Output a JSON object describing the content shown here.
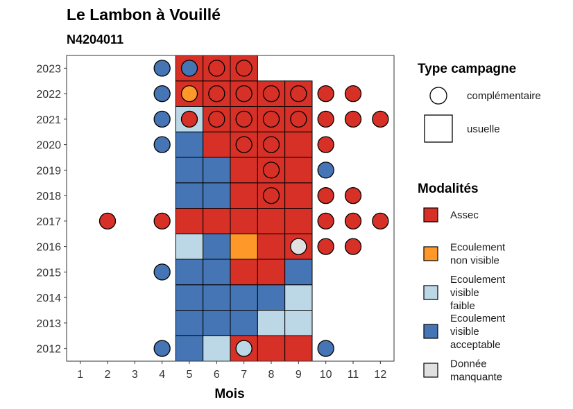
{
  "chart_data": {
    "type": "heatmap",
    "title": "Le Lambon à Vouillé",
    "subtitle": "N4204011",
    "xlabel": "Mois",
    "ylabel": "",
    "x_ticks": [
      "1",
      "2",
      "3",
      "4",
      "5",
      "6",
      "7",
      "8",
      "9",
      "10",
      "11",
      "12"
    ],
    "y_ticks": [
      "2012",
      "2013",
      "2014",
      "2015",
      "2016",
      "2017",
      "2018",
      "2019",
      "2020",
      "2021",
      "2022",
      "2023"
    ],
    "grid": false,
    "colors": {
      "assec": "#d73027",
      "ecoulement_non_visible": "#fe9929",
      "ecoulement_visible_faible": "#bcd7e6",
      "ecoulement_visible_acceptable": "#4575b4",
      "donnee_manquante": "#e0e0e0"
    },
    "legend_shape": {
      "title": "Type campagne",
      "items": [
        {
          "label": "complémentaire",
          "shape": "circle"
        },
        {
          "label": "usuelle",
          "shape": "square"
        }
      ]
    },
    "legend_fill": {
      "title": "Modalités",
      "items": [
        {
          "key": "assec",
          "lines": [
            "Assec"
          ]
        },
        {
          "key": "ecoulement_non_visible",
          "lines": [
            "Ecoulement",
            "non visible"
          ]
        },
        {
          "key": "ecoulement_visible_faible",
          "lines": [
            "Ecoulement",
            "visible",
            "faible"
          ]
        },
        {
          "key": "ecoulement_visible_acceptable",
          "lines": [
            "Ecoulement",
            "visible",
            "acceptable"
          ]
        },
        {
          "key": "donnee_manquante",
          "lines": [
            "Donnée",
            "manquante"
          ]
        }
      ]
    },
    "usuelle": [
      {
        "year": 2012,
        "months": [
          [
            "ecoulement_visible_acceptable"
          ],
          [
            "ecoulement_visible_faible"
          ],
          [
            "assec"
          ],
          [
            "assec"
          ],
          [
            "assec"
          ]
        ]
      },
      {
        "year": 2013,
        "months": [
          [
            "ecoulement_visible_acceptable"
          ],
          [
            "ecoulement_visible_acceptable"
          ],
          [
            "ecoulement_visible_acceptable"
          ],
          [
            "ecoulement_visible_faible"
          ],
          [
            "ecoulement_visible_faible"
          ]
        ]
      },
      {
        "year": 2014,
        "months": [
          [
            "ecoulement_visible_acceptable"
          ],
          [
            "ecoulement_visible_acceptable"
          ],
          [
            "ecoulement_visible_acceptable"
          ],
          [
            "ecoulement_visible_acceptable"
          ],
          [
            "ecoulement_visible_faible"
          ]
        ]
      },
      {
        "year": 2015,
        "months": [
          [
            "ecoulement_visible_acceptable"
          ],
          [
            "ecoulement_visible_acceptable"
          ],
          [
            "assec"
          ],
          [
            "assec"
          ],
          [
            "ecoulement_visible_acceptable"
          ]
        ]
      },
      {
        "year": 2016,
        "months": [
          [
            "ecoulement_visible_faible"
          ],
          [
            "ecoulement_visible_acceptable"
          ],
          [
            "ecoulement_non_visible"
          ],
          [
            "assec"
          ],
          [
            "assec"
          ]
        ]
      },
      {
        "year": 2017,
        "months": [
          [
            "assec"
          ],
          [
            "assec"
          ],
          [
            "assec"
          ],
          [
            "assec"
          ],
          [
            "assec"
          ]
        ]
      },
      {
        "year": 2018,
        "months": [
          [
            "ecoulement_visible_acceptable"
          ],
          [
            "ecoulement_visible_acceptable"
          ],
          [
            "assec"
          ],
          [
            "assec"
          ],
          [
            "assec"
          ]
        ]
      },
      {
        "year": 2019,
        "months": [
          [
            "ecoulement_visible_acceptable"
          ],
          [
            "ecoulement_visible_acceptable"
          ],
          [
            "assec"
          ],
          [
            "assec"
          ],
          [
            "assec"
          ]
        ]
      },
      {
        "year": 2020,
        "months": [
          [
            "ecoulement_visible_acceptable"
          ],
          [
            "assec"
          ],
          [
            "assec"
          ],
          [
            "assec"
          ],
          [
            "assec"
          ]
        ]
      },
      {
        "year": 2021,
        "months": [
          [
            "ecoulement_visible_faible"
          ],
          [
            "assec"
          ],
          [
            "assec"
          ],
          [
            "assec"
          ],
          [
            "assec"
          ]
        ]
      },
      {
        "year": 2022,
        "months": [
          [
            "assec"
          ],
          [
            "assec"
          ],
          [
            "assec"
          ],
          [
            "assec"
          ],
          [
            "assec"
          ]
        ]
      },
      {
        "year": 2023,
        "months": [
          [
            "assec"
          ],
          [
            "assec"
          ],
          [
            "assec"
          ]
        ]
      }
    ],
    "usuelle_first_month": 5,
    "complementaire": [
      {
        "year": 2012,
        "month": 4,
        "value": "ecoulement_visible_acceptable"
      },
      {
        "year": 2012,
        "month": 7,
        "value": "ecoulement_visible_faible"
      },
      {
        "year": 2012,
        "month": 10,
        "value": "ecoulement_visible_acceptable"
      },
      {
        "year": 2015,
        "month": 4,
        "value": "ecoulement_visible_acceptable"
      },
      {
        "year": 2016,
        "month": 9,
        "value": "donnee_manquante"
      },
      {
        "year": 2016,
        "month": 10,
        "value": "assec"
      },
      {
        "year": 2016,
        "month": 11,
        "value": "assec"
      },
      {
        "year": 2017,
        "month": 2,
        "value": "assec"
      },
      {
        "year": 2017,
        "month": 4,
        "value": "assec"
      },
      {
        "year": 2017,
        "month": 10,
        "value": "assec"
      },
      {
        "year": 2017,
        "month": 11,
        "value": "assec"
      },
      {
        "year": 2017,
        "month": 12,
        "value": "assec"
      },
      {
        "year": 2018,
        "month": 8,
        "value": "assec"
      },
      {
        "year": 2018,
        "month": 10,
        "value": "assec"
      },
      {
        "year": 2018,
        "month": 11,
        "value": "assec"
      },
      {
        "year": 2019,
        "month": 8,
        "value": "assec"
      },
      {
        "year": 2019,
        "month": 10,
        "value": "ecoulement_visible_acceptable"
      },
      {
        "year": 2020,
        "month": 4,
        "value": "ecoulement_visible_acceptable"
      },
      {
        "year": 2020,
        "month": 7,
        "value": "assec"
      },
      {
        "year": 2020,
        "month": 8,
        "value": "assec"
      },
      {
        "year": 2020,
        "month": 10,
        "value": "assec"
      },
      {
        "year": 2021,
        "month": 4,
        "value": "ecoulement_visible_acceptable"
      },
      {
        "year": 2021,
        "month": 5,
        "value": "assec"
      },
      {
        "year": 2021,
        "month": 6,
        "value": "assec"
      },
      {
        "year": 2021,
        "month": 7,
        "value": "assec"
      },
      {
        "year": 2021,
        "month": 8,
        "value": "assec"
      },
      {
        "year": 2021,
        "month": 9,
        "value": "assec"
      },
      {
        "year": 2021,
        "month": 10,
        "value": "assec"
      },
      {
        "year": 2021,
        "month": 11,
        "value": "assec"
      },
      {
        "year": 2021,
        "month": 12,
        "value": "assec"
      },
      {
        "year": 2022,
        "month": 4,
        "value": "ecoulement_visible_acceptable"
      },
      {
        "year": 2022,
        "month": 5,
        "value": "ecoulement_non_visible"
      },
      {
        "year": 2022,
        "month": 6,
        "value": "assec"
      },
      {
        "year": 2022,
        "month": 7,
        "value": "assec"
      },
      {
        "year": 2022,
        "month": 8,
        "value": "assec"
      },
      {
        "year": 2022,
        "month": 9,
        "value": "assec"
      },
      {
        "year": 2022,
        "month": 10,
        "value": "assec"
      },
      {
        "year": 2022,
        "month": 11,
        "value": "assec"
      },
      {
        "year": 2023,
        "month": 4,
        "value": "ecoulement_visible_acceptable"
      },
      {
        "year": 2023,
        "month": 5,
        "value": "ecoulement_visible_acceptable"
      },
      {
        "year": 2023,
        "month": 6,
        "value": "assec"
      },
      {
        "year": 2023,
        "month": 7,
        "value": "assec"
      }
    ]
  }
}
